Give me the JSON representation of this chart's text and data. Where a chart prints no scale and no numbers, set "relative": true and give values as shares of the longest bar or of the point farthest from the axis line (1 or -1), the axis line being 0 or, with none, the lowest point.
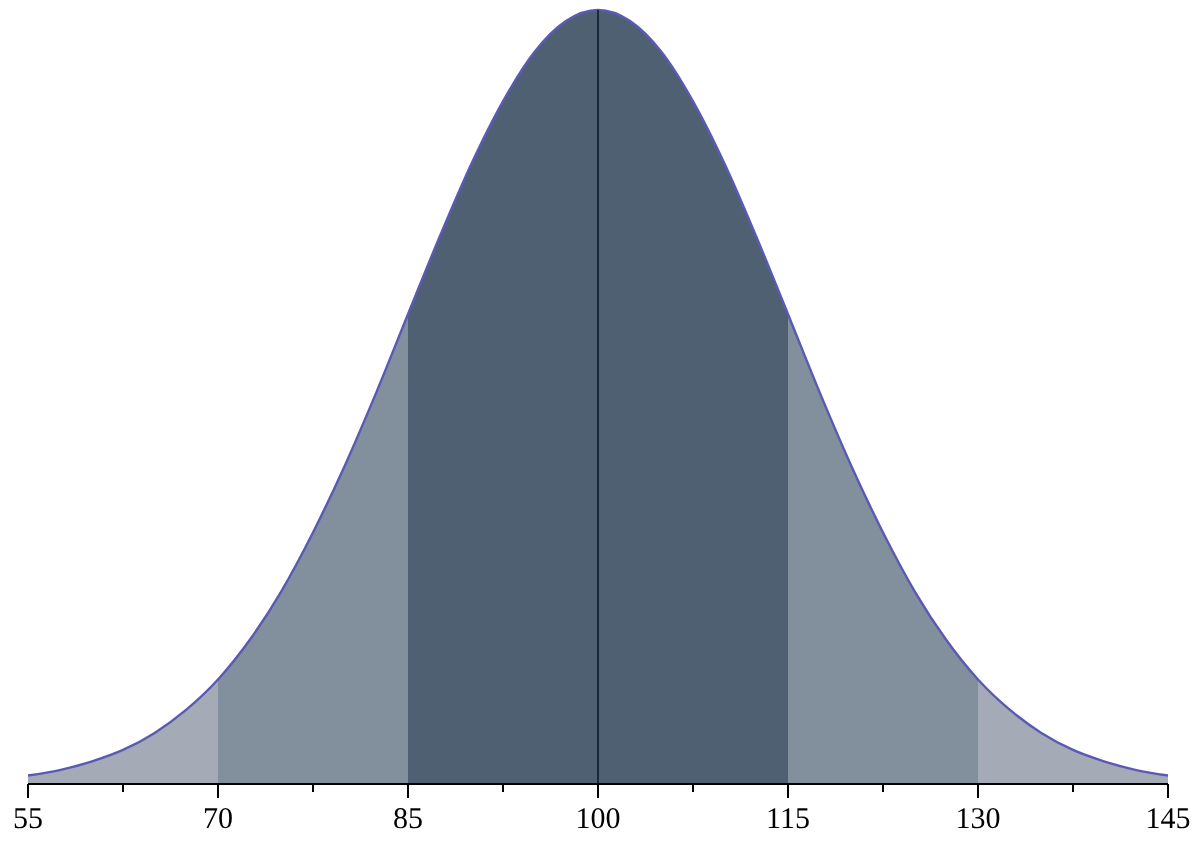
{
  "chart_data": {
    "type": "area",
    "relative": true,
    "xlim": [
      55,
      145
    ],
    "xticks": [
      55,
      {
        "value": 62.5,
        "label": null
      },
      70,
      {
        "value": 77.5,
        "label": null
      },
      85,
      {
        "value": 92.5,
        "label": null
      },
      100,
      {
        "value": 107.5,
        "label": null
      },
      115,
      {
        "value": 122.5,
        "label": null
      },
      130,
      {
        "value": 137.5,
        "label": null
      },
      145
    ],
    "series": [
      {
        "color": "#a5abb6",
        "x": [
          55,
          57.5,
          60,
          62.5,
          65,
          67.5,
          70
        ],
        "values": [
          0.011,
          0.018,
          0.029,
          0.044,
          0.066,
          0.096,
          0.135
        ]
      },
      {
        "color": "#828f9c",
        "x": [
          70,
          72.5,
          75,
          77.5,
          80,
          82.5,
          85
        ],
        "values": [
          0.135,
          0.186,
          0.249,
          0.325,
          0.411,
          0.506,
          0.607
        ]
      },
      {
        "color": "#4f6073",
        "x": [
          85,
          87.5,
          90,
          92.5,
          95,
          97.5,
          100,
          102.5,
          105,
          107.5,
          110,
          112.5,
          115
        ],
        "values": [
          0.607,
          0.707,
          0.801,
          0.882,
          0.946,
          0.986,
          1,
          0.986,
          0.946,
          0.882,
          0.801,
          0.707,
          0.607
        ]
      },
      {
        "color": "#828f9c",
        "x": [
          115,
          117.5,
          120,
          122.5,
          125,
          127.5,
          130
        ],
        "values": [
          0.607,
          0.506,
          0.411,
          0.325,
          0.249,
          0.186,
          0.135
        ]
      },
      {
        "color": "#a5abb6",
        "x": [
          130,
          132.5,
          135,
          137.5,
          140,
          142.5,
          145
        ],
        "values": [
          0.135,
          0.096,
          0.066,
          0.044,
          0.029,
          0.018,
          0.011
        ]
      },
      {
        "type": "line",
        "color": "#5a5ab4",
        "x": [
          55,
          57.5,
          60,
          62.5,
          65,
          67.5,
          70,
          72.5,
          75,
          77.5,
          80,
          82.5,
          85,
          87.5,
          90,
          92.5,
          95,
          97.5,
          100,
          102.5,
          105,
          107.5,
          110,
          112.5,
          115,
          117.5,
          120,
          122.5,
          125,
          127.5,
          130,
          132.5,
          135,
          137.5,
          140,
          142.5,
          145
        ],
        "values": [
          0.011,
          0.018,
          0.029,
          0.044,
          0.066,
          0.096,
          0.135,
          0.186,
          0.249,
          0.325,
          0.411,
          0.506,
          0.607,
          0.707,
          0.801,
          0.882,
          0.946,
          0.986,
          1,
          0.986,
          0.946,
          0.882,
          0.801,
          0.707,
          0.607,
          0.506,
          0.411,
          0.325,
          0.249,
          0.186,
          0.135,
          0.096,
          0.066,
          0.044,
          0.029,
          0.018,
          0.011
        ]
      }
    ],
    "ref_lines": [
      {
        "axis": "x",
        "value": 100,
        "color": "#1c2a38"
      }
    ]
  }
}
